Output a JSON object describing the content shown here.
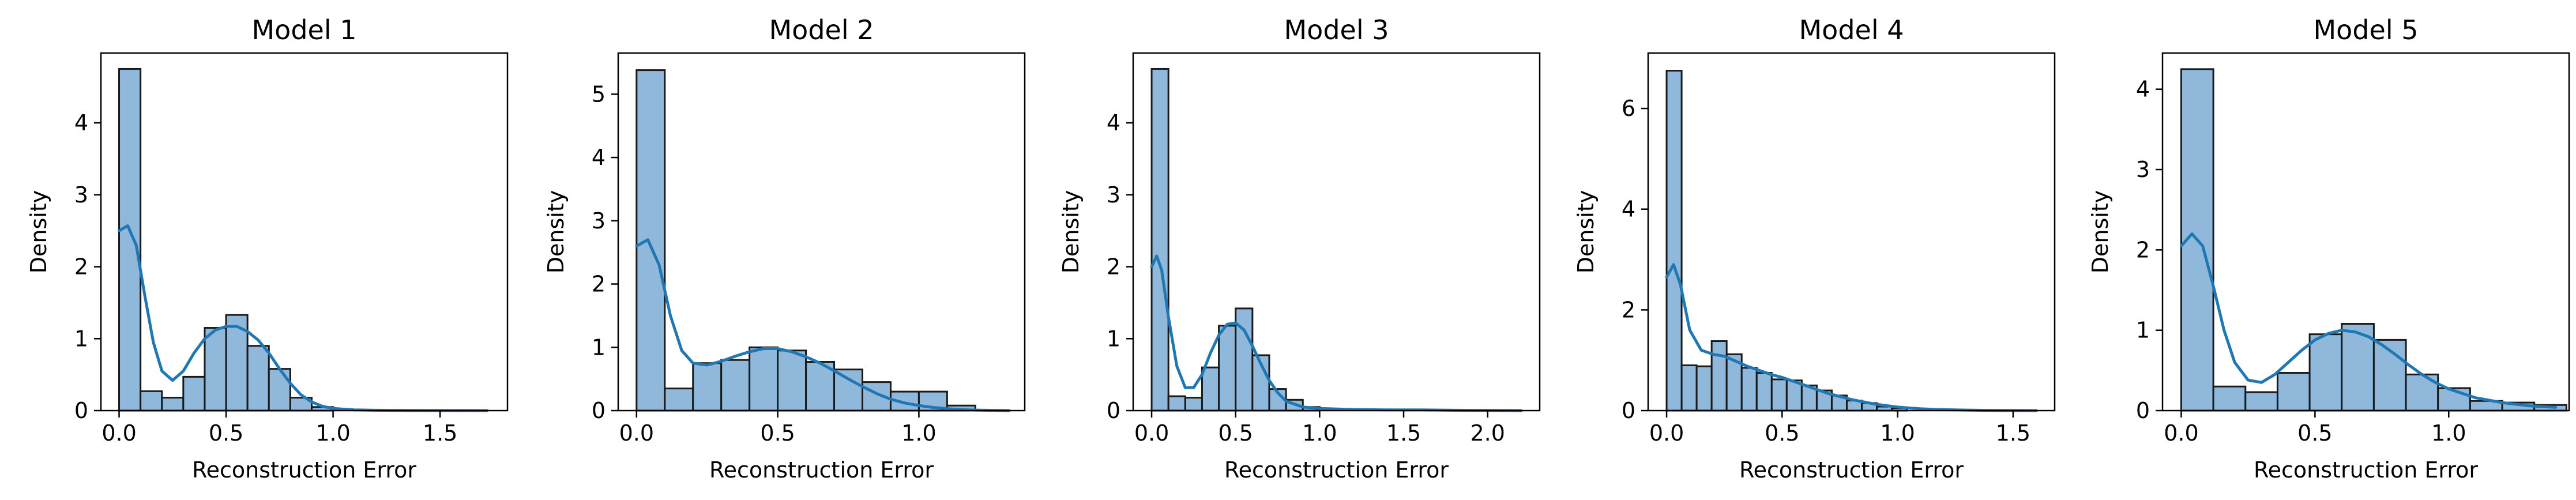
{
  "figure": {
    "bar_fill": "#8fb8db",
    "bar_edge": "#1a1a1a",
    "kde_color": "#1f77b4"
  },
  "chart_data": [
    {
      "type": "bar",
      "title": "Model 1",
      "xlabel": "Reconstruction Error",
      "ylabel": "Density",
      "xlim": [
        -0.085,
        1.815
      ],
      "ylim": [
        0,
        4.97
      ],
      "xticks": [
        0.0,
        0.5,
        1.0,
        1.5
      ],
      "xtick_labels": [
        "0.0",
        "0.5",
        "1.0",
        "1.5"
      ],
      "yticks": [
        0,
        1,
        2,
        3,
        4
      ],
      "ytick_labels": [
        "0",
        "1",
        "2",
        "3",
        "4"
      ],
      "bins": [
        {
          "x0": 0.0,
          "x1": 0.1,
          "density": 4.75
        },
        {
          "x0": 0.1,
          "x1": 0.2,
          "density": 0.27
        },
        {
          "x0": 0.2,
          "x1": 0.3,
          "density": 0.18
        },
        {
          "x0": 0.3,
          "x1": 0.4,
          "density": 0.47
        },
        {
          "x0": 0.4,
          "x1": 0.5,
          "density": 1.15
        },
        {
          "x0": 0.5,
          "x1": 0.6,
          "density": 1.33
        },
        {
          "x0": 0.6,
          "x1": 0.7,
          "density": 0.9
        },
        {
          "x0": 0.7,
          "x1": 0.8,
          "density": 0.58
        },
        {
          "x0": 0.8,
          "x1": 0.9,
          "density": 0.18
        },
        {
          "x0": 0.9,
          "x1": 1.0,
          "density": 0.05
        }
      ],
      "kde": {
        "x": [
          0.0,
          0.04,
          0.08,
          0.12,
          0.16,
          0.2,
          0.25,
          0.3,
          0.35,
          0.4,
          0.45,
          0.5,
          0.55,
          0.6,
          0.65,
          0.7,
          0.75,
          0.8,
          0.85,
          0.9,
          0.95,
          1.0,
          1.1,
          1.2,
          1.35,
          1.5,
          1.72
        ],
        "y": [
          2.5,
          2.57,
          2.3,
          1.6,
          0.95,
          0.55,
          0.42,
          0.55,
          0.8,
          1.0,
          1.12,
          1.17,
          1.17,
          1.1,
          0.98,
          0.8,
          0.58,
          0.38,
          0.22,
          0.12,
          0.06,
          0.03,
          0.01,
          0.005,
          0.002,
          0.001,
          0.0
        ]
      }
    },
    {
      "type": "bar",
      "title": "Model 2",
      "xlabel": "Reconstruction Error",
      "ylabel": "Density",
      "xlim": [
        -0.065,
        1.375
      ],
      "ylim": [
        0,
        5.65
      ],
      "xticks": [
        0.0,
        0.5,
        1.0
      ],
      "xtick_labels": [
        "0.0",
        "0.5",
        "1.0"
      ],
      "yticks": [
        0,
        1,
        2,
        3,
        4,
        5
      ],
      "ytick_labels": [
        "0",
        "1",
        "2",
        "3",
        "4",
        "5"
      ],
      "bins": [
        {
          "x0": 0.0,
          "x1": 0.1,
          "density": 5.38
        },
        {
          "x0": 0.1,
          "x1": 0.2,
          "density": 0.35
        },
        {
          "x0": 0.2,
          "x1": 0.3,
          "density": 0.75
        },
        {
          "x0": 0.3,
          "x1": 0.4,
          "density": 0.8
        },
        {
          "x0": 0.4,
          "x1": 0.5,
          "density": 1.0
        },
        {
          "x0": 0.5,
          "x1": 0.6,
          "density": 0.95
        },
        {
          "x0": 0.6,
          "x1": 0.7,
          "density": 0.77
        },
        {
          "x0": 0.7,
          "x1": 0.8,
          "density": 0.65
        },
        {
          "x0": 0.8,
          "x1": 0.9,
          "density": 0.45
        },
        {
          "x0": 0.9,
          "x1": 1.0,
          "density": 0.3
        },
        {
          "x0": 1.0,
          "x1": 1.1,
          "density": 0.3
        },
        {
          "x0": 1.1,
          "x1": 1.2,
          "density": 0.08
        }
      ],
      "kde": {
        "x": [
          0.0,
          0.04,
          0.08,
          0.12,
          0.16,
          0.2,
          0.25,
          0.3,
          0.35,
          0.4,
          0.45,
          0.5,
          0.55,
          0.6,
          0.65,
          0.7,
          0.75,
          0.8,
          0.85,
          0.9,
          0.95,
          1.0,
          1.05,
          1.1,
          1.15,
          1.2,
          1.32
        ],
        "y": [
          2.6,
          2.7,
          2.3,
          1.5,
          0.95,
          0.75,
          0.72,
          0.78,
          0.86,
          0.93,
          0.98,
          0.98,
          0.93,
          0.85,
          0.75,
          0.63,
          0.5,
          0.38,
          0.27,
          0.18,
          0.12,
          0.08,
          0.05,
          0.03,
          0.015,
          0.008,
          0.0
        ]
      }
    },
    {
      "type": "bar",
      "title": "Model 3",
      "xlabel": "Reconstruction Error",
      "ylabel": "Density",
      "xlim": [
        -0.11,
        2.31
      ],
      "ylim": [
        0,
        4.97
      ],
      "xticks": [
        0.0,
        0.5,
        1.0,
        1.5,
        2.0
      ],
      "xtick_labels": [
        "0.0",
        "0.5",
        "1.0",
        "1.5",
        "2.0"
      ],
      "yticks": [
        0,
        1,
        2,
        3,
        4
      ],
      "ytick_labels": [
        "0",
        "1",
        "2",
        "3",
        "4"
      ],
      "bins": [
        {
          "x0": 0.0,
          "x1": 0.1,
          "density": 4.75
        },
        {
          "x0": 0.1,
          "x1": 0.2,
          "density": 0.2
        },
        {
          "x0": 0.2,
          "x1": 0.3,
          "density": 0.18
        },
        {
          "x0": 0.3,
          "x1": 0.4,
          "density": 0.6
        },
        {
          "x0": 0.4,
          "x1": 0.5,
          "density": 1.18
        },
        {
          "x0": 0.5,
          "x1": 0.6,
          "density": 1.42
        },
        {
          "x0": 0.6,
          "x1": 0.7,
          "density": 0.77
        },
        {
          "x0": 0.7,
          "x1": 0.8,
          "density": 0.3
        },
        {
          "x0": 0.8,
          "x1": 0.9,
          "density": 0.15
        },
        {
          "x0": 0.9,
          "x1": 1.0,
          "density": 0.05
        }
      ],
      "kde": {
        "x": [
          0.0,
          0.03,
          0.06,
          0.1,
          0.15,
          0.2,
          0.25,
          0.3,
          0.35,
          0.4,
          0.45,
          0.5,
          0.55,
          0.6,
          0.65,
          0.7,
          0.75,
          0.8,
          0.9,
          1.0,
          1.2,
          1.4,
          1.6,
          1.8,
          2.0,
          2.2
        ],
        "y": [
          2.0,
          2.15,
          1.95,
          1.3,
          0.62,
          0.32,
          0.32,
          0.5,
          0.8,
          1.05,
          1.2,
          1.22,
          1.12,
          0.9,
          0.65,
          0.42,
          0.25,
          0.13,
          0.05,
          0.03,
          0.015,
          0.01,
          0.01,
          0.005,
          0.003,
          0.0
        ]
      }
    },
    {
      "type": "bar",
      "title": "Model 4",
      "xlabel": "Reconstruction Error",
      "ylabel": "Density",
      "xlim": [
        -0.08,
        1.68
      ],
      "ylim": [
        0,
        7.1
      ],
      "xticks": [
        0.0,
        0.5,
        1.0,
        1.5
      ],
      "xtick_labels": [
        "0.0",
        "0.5",
        "1.0",
        "1.5"
      ],
      "yticks": [
        0,
        2,
        4,
        6
      ],
      "ytick_labels": [
        "0",
        "2",
        "4",
        "6"
      ],
      "bins": [
        {
          "x0": 0.0,
          "x1": 0.065,
          "density": 6.75
        },
        {
          "x0": 0.065,
          "x1": 0.13,
          "density": 0.9
        },
        {
          "x0": 0.13,
          "x1": 0.195,
          "density": 0.88
        },
        {
          "x0": 0.195,
          "x1": 0.26,
          "density": 1.38
        },
        {
          "x0": 0.26,
          "x1": 0.325,
          "density": 1.12
        },
        {
          "x0": 0.325,
          "x1": 0.39,
          "density": 0.85
        },
        {
          "x0": 0.39,
          "x1": 0.455,
          "density": 0.75
        },
        {
          "x0": 0.455,
          "x1": 0.52,
          "density": 0.62
        },
        {
          "x0": 0.52,
          "x1": 0.585,
          "density": 0.6
        },
        {
          "x0": 0.585,
          "x1": 0.65,
          "density": 0.5
        },
        {
          "x0": 0.65,
          "x1": 0.715,
          "density": 0.4
        },
        {
          "x0": 0.715,
          "x1": 0.78,
          "density": 0.3
        },
        {
          "x0": 0.78,
          "x1": 0.845,
          "density": 0.2
        },
        {
          "x0": 0.845,
          "x1": 0.91,
          "density": 0.15
        },
        {
          "x0": 0.91,
          "x1": 0.975,
          "density": 0.08
        },
        {
          "x0": 0.975,
          "x1": 1.04,
          "density": 0.05
        }
      ],
      "kde": {
        "x": [
          0.0,
          0.03,
          0.06,
          0.1,
          0.15,
          0.2,
          0.25,
          0.3,
          0.35,
          0.4,
          0.45,
          0.5,
          0.55,
          0.6,
          0.65,
          0.7,
          0.8,
          0.9,
          1.0,
          1.1,
          1.2,
          1.3,
          1.4,
          1.6
        ],
        "y": [
          2.65,
          2.9,
          2.5,
          1.6,
          1.2,
          1.12,
          1.08,
          0.98,
          0.88,
          0.8,
          0.72,
          0.66,
          0.58,
          0.5,
          0.42,
          0.34,
          0.22,
          0.13,
          0.07,
          0.035,
          0.018,
          0.01,
          0.005,
          0.0
        ]
      }
    },
    {
      "type": "bar",
      "title": "Model 5",
      "xlabel": "Reconstruction Error",
      "ylabel": "Density",
      "xlim": [
        -0.07,
        1.45
      ],
      "ylim": [
        0,
        4.45
      ],
      "xticks": [
        0.0,
        0.5,
        1.0
      ],
      "xtick_labels": [
        "0.0",
        "0.5",
        "1.0"
      ],
      "yticks": [
        0,
        1,
        2,
        3,
        4
      ],
      "ytick_labels": [
        "0",
        "1",
        "2",
        "3",
        "4"
      ],
      "bins": [
        {
          "x0": 0.0,
          "x1": 0.12,
          "density": 4.25
        },
        {
          "x0": 0.12,
          "x1": 0.24,
          "density": 0.3
        },
        {
          "x0": 0.24,
          "x1": 0.36,
          "density": 0.23
        },
        {
          "x0": 0.36,
          "x1": 0.48,
          "density": 0.47
        },
        {
          "x0": 0.48,
          "x1": 0.6,
          "density": 0.95
        },
        {
          "x0": 0.6,
          "x1": 0.72,
          "density": 1.08
        },
        {
          "x0": 0.72,
          "x1": 0.84,
          "density": 0.88
        },
        {
          "x0": 0.84,
          "x1": 0.96,
          "density": 0.45
        },
        {
          "x0": 0.96,
          "x1": 1.08,
          "density": 0.28
        },
        {
          "x0": 1.08,
          "x1": 1.2,
          "density": 0.12
        },
        {
          "x0": 1.2,
          "x1": 1.32,
          "density": 0.1
        },
        {
          "x0": 1.32,
          "x1": 1.44,
          "density": 0.07
        }
      ],
      "kde": {
        "x": [
          0.0,
          0.04,
          0.08,
          0.12,
          0.16,
          0.2,
          0.25,
          0.3,
          0.35,
          0.4,
          0.45,
          0.5,
          0.55,
          0.6,
          0.65,
          0.7,
          0.75,
          0.8,
          0.85,
          0.9,
          0.95,
          1.0,
          1.1,
          1.2,
          1.3,
          1.4
        ],
        "y": [
          2.05,
          2.2,
          2.05,
          1.55,
          1.0,
          0.6,
          0.38,
          0.35,
          0.45,
          0.6,
          0.75,
          0.88,
          0.96,
          1.0,
          0.98,
          0.92,
          0.82,
          0.7,
          0.57,
          0.45,
          0.35,
          0.27,
          0.16,
          0.1,
          0.06,
          0.04
        ]
      }
    }
  ]
}
